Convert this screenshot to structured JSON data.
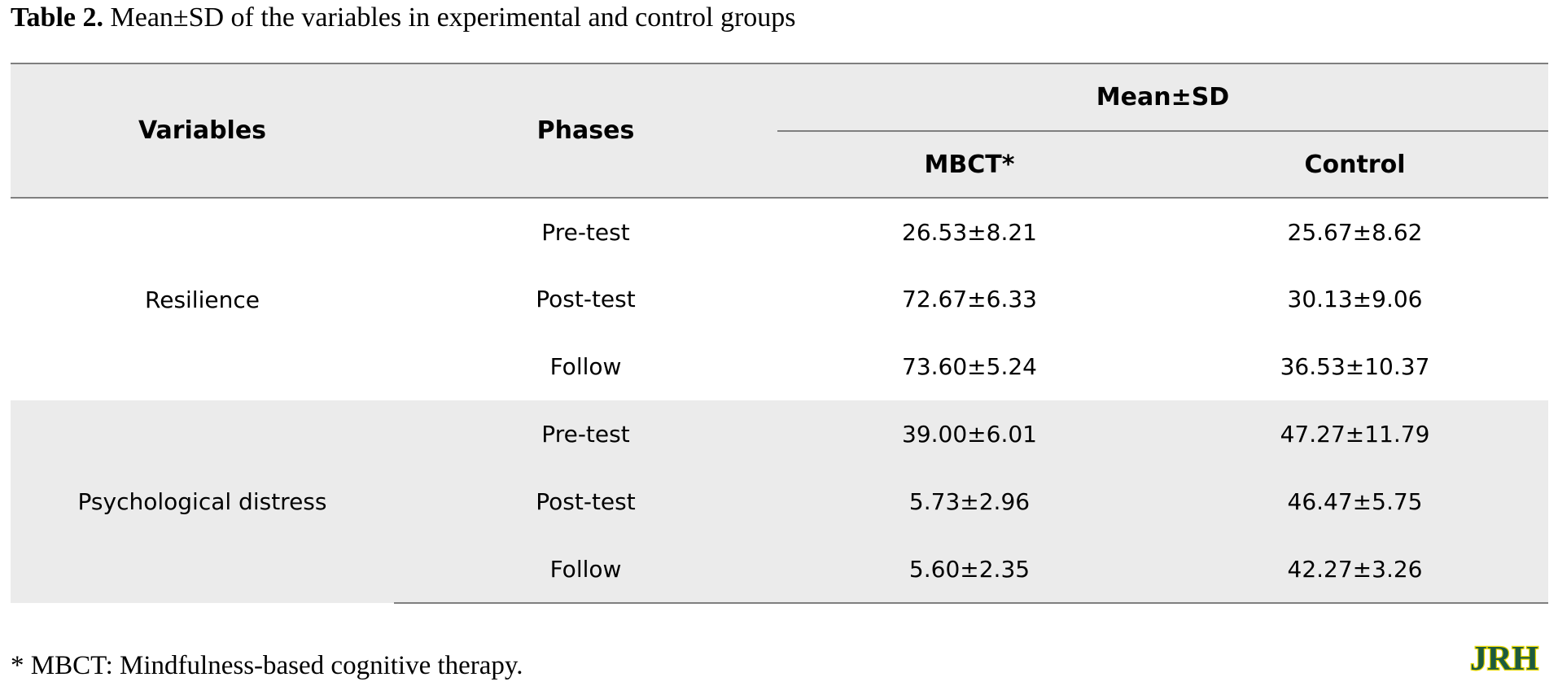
{
  "caption": {
    "label": "Table 2.",
    "text": "Mean±SD of the variables in experimental and control groups"
  },
  "table": {
    "headers": {
      "variables": "Variables",
      "phases": "Phases",
      "group_span": "Mean±SD",
      "mbct": "MBCT*",
      "control": "Control"
    },
    "groups": [
      {
        "variable": "Resilience",
        "shaded": false,
        "rows": [
          {
            "phase": "Pre-test",
            "mbct": "26.53±8.21",
            "control": "25.67±8.62"
          },
          {
            "phase": "Post-test",
            "mbct": "72.67±6.33",
            "control": "30.13±9.06"
          },
          {
            "phase": "Follow",
            "mbct": "73.60±5.24",
            "control": "36.53±10.37"
          }
        ]
      },
      {
        "variable": "Psychological distress",
        "shaded": true,
        "rows": [
          {
            "phase": "Pre-test",
            "mbct": "39.00±6.01",
            "control": "47.27±11.79"
          },
          {
            "phase": "Post-test",
            "mbct": "5.73±2.96",
            "control": "46.47±5.75"
          },
          {
            "phase": "Follow",
            "mbct": "5.60±2.35",
            "control": "42.27±3.26"
          }
        ]
      }
    ]
  },
  "footnote": "* MBCT: Mindfulness-based cognitive therapy.",
  "logo": {
    "text": "JRH",
    "fill_color": "#1c5a3e",
    "outline_color": "#e8d800"
  }
}
